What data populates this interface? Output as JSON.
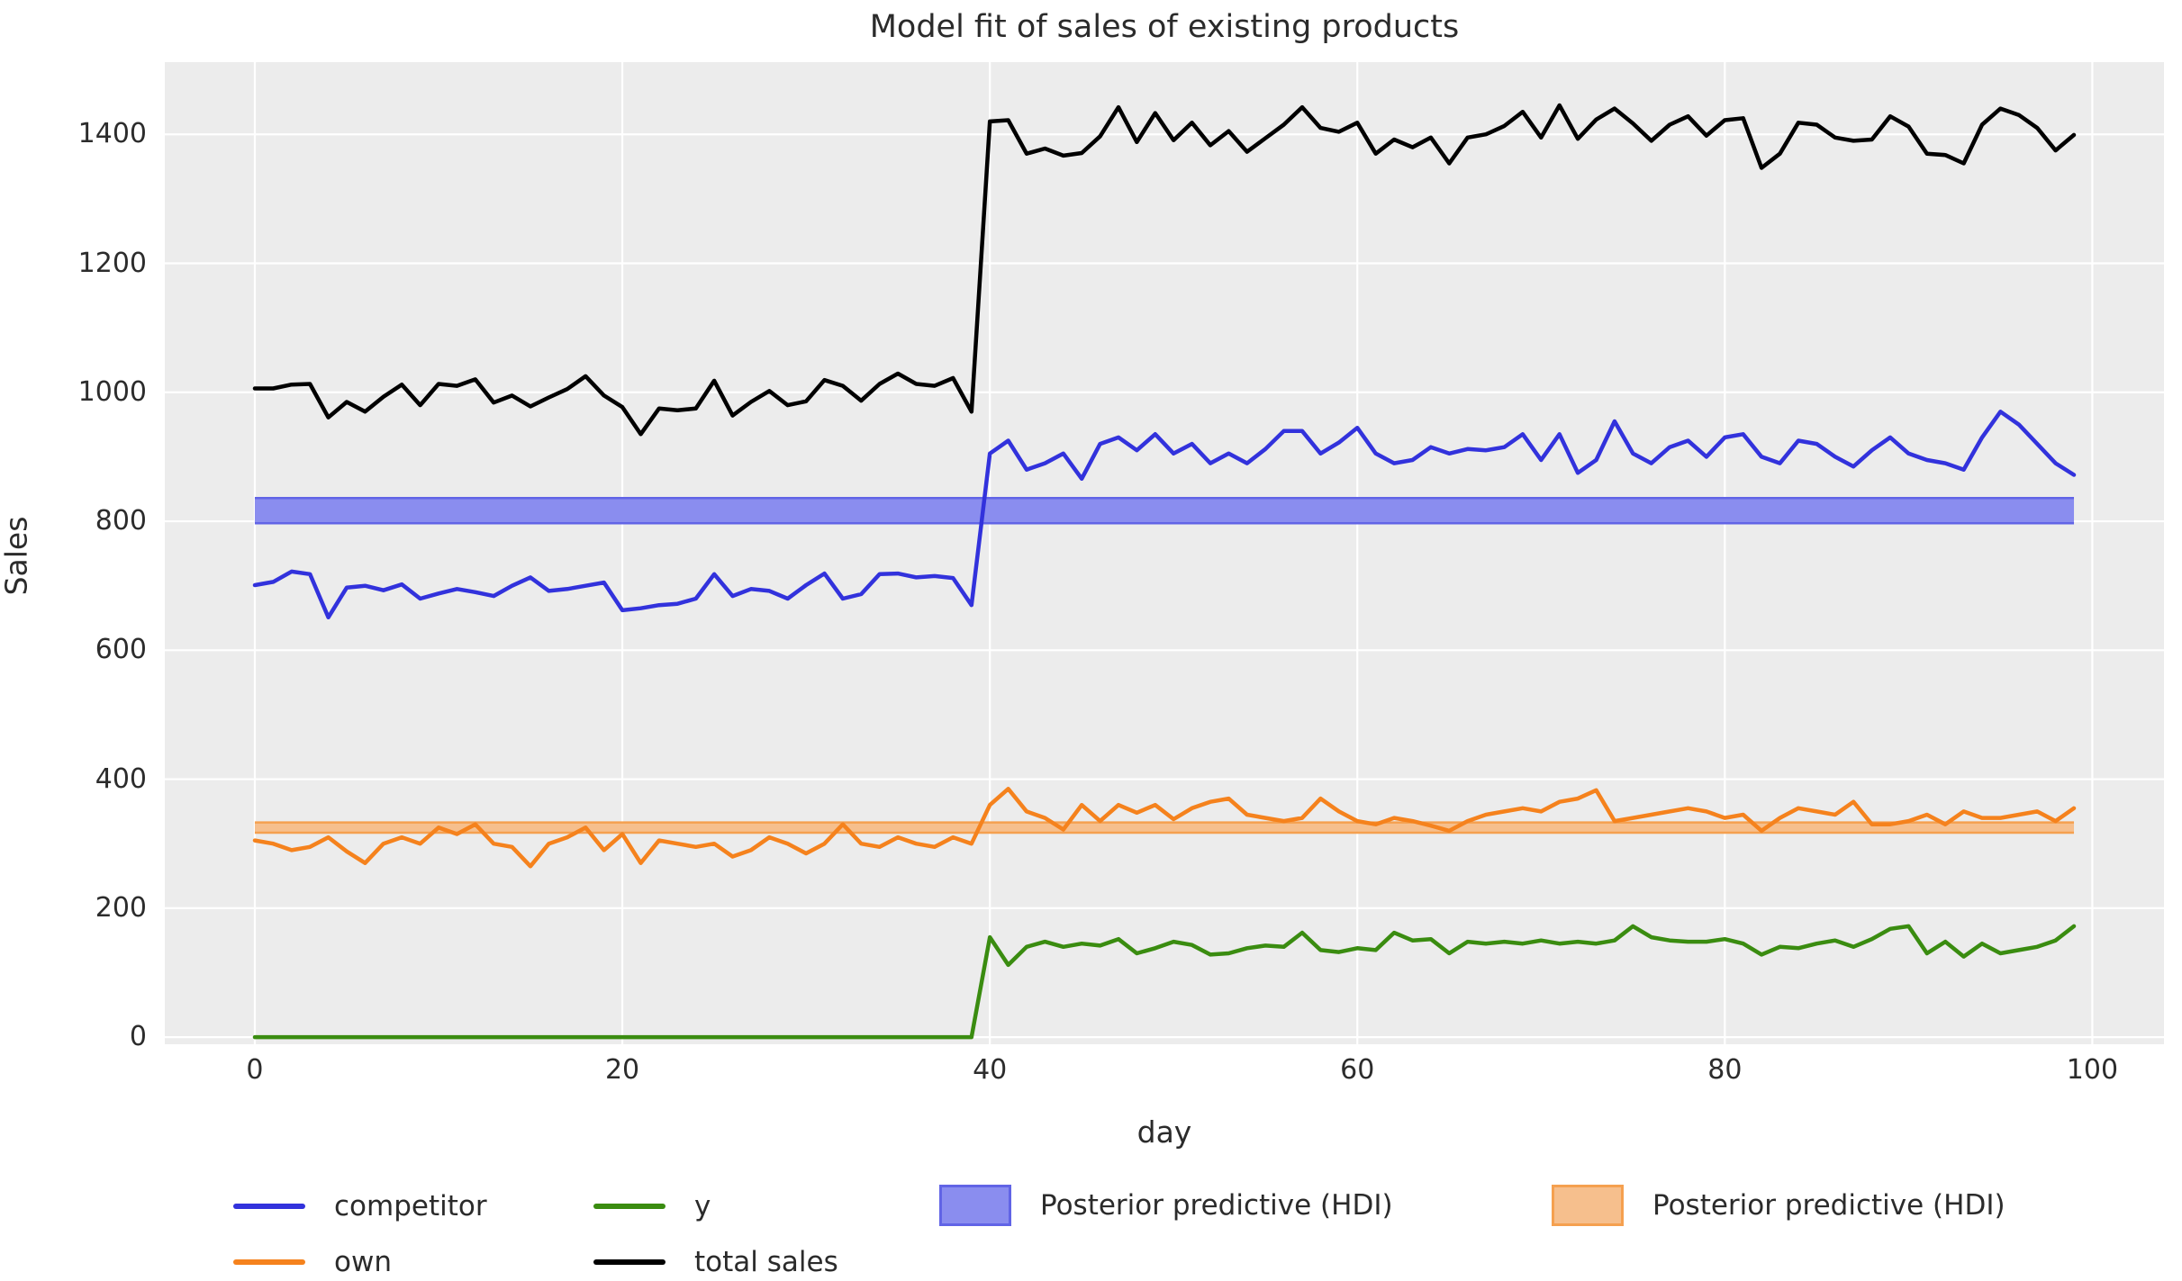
{
  "title": "Model fit of sales of existing products",
  "axes": {
    "xlabel": "day",
    "ylabel": "Sales",
    "x_ticks": [
      0,
      20,
      40,
      60,
      80,
      100
    ],
    "y_ticks": [
      0,
      200,
      400,
      600,
      800,
      1000,
      1200,
      1400
    ],
    "xlim": [
      -4.9,
      103.9
    ],
    "ylim": [
      -11,
      1512
    ],
    "grid": true,
    "plot_background": "#ececec",
    "gridline_color": "#ffffff"
  },
  "legend": {
    "position": "below plot, two rows",
    "entries": [
      {
        "label": "competitor",
        "type": "line",
        "color": "#3232dc"
      },
      {
        "label": "own",
        "type": "line",
        "color": "#f5821d"
      },
      {
        "label": "y",
        "type": "line",
        "color": "#3a8c10"
      },
      {
        "label": "total sales",
        "type": "line",
        "color": "#000000"
      },
      {
        "label": "Posterior predictive (HDI)",
        "type": "patch",
        "color": "#8a8def",
        "edge": "#6164e6"
      },
      {
        "label": "Posterior predictive (HDI)",
        "type": "patch",
        "color": "#f6bf8d",
        "edge": "#f5a04f"
      }
    ]
  },
  "chart_data": {
    "type": "line",
    "title": "Model fit of sales of existing products",
    "xlabel": "day",
    "ylabel": "Sales",
    "x_note": "days are integers 0..99 (x0 + i*dx)",
    "x0": 0,
    "dx": 1,
    "n": 100,
    "series": [
      {
        "name": "competitor",
        "color": "#3232dc",
        "values": [
          701,
          706,
          722,
          718,
          651,
          697,
          700,
          693,
          702,
          680,
          688,
          695,
          690,
          684,
          700,
          713,
          692,
          695,
          700,
          705,
          662,
          665,
          670,
          672,
          680,
          718,
          684,
          695,
          692,
          680,
          701,
          719,
          680,
          687,
          718,
          719,
          713,
          715,
          712,
          670,
          905,
          925,
          880,
          890,
          905,
          866,
          920,
          930,
          910,
          935,
          905,
          920,
          890,
          905,
          890,
          912,
          940,
          940,
          905,
          922,
          945,
          905,
          890,
          895,
          915,
          905,
          912,
          910,
          915,
          935,
          895,
          935,
          875,
          895,
          955,
          905,
          890,
          915,
          925,
          900,
          930,
          935,
          900,
          890,
          925,
          920,
          900,
          885,
          910,
          930,
          905,
          895,
          890,
          880,
          930,
          970,
          950,
          920,
          890,
          872
        ]
      },
      {
        "name": "own",
        "color": "#f5821d",
        "values": [
          305,
          300,
          290,
          295,
          310,
          288,
          270,
          300,
          310,
          300,
          325,
          315,
          330,
          300,
          295,
          265,
          300,
          310,
          325,
          290,
          315,
          270,
          305,
          300,
          295,
          300,
          280,
          290,
          310,
          300,
          285,
          300,
          330,
          300,
          295,
          310,
          300,
          295,
          310,
          300,
          360,
          385,
          350,
          340,
          322,
          360,
          335,
          360,
          348,
          360,
          338,
          355,
          365,
          370,
          345,
          340,
          335,
          340,
          370,
          350,
          335,
          330,
          340,
          335,
          328,
          320,
          335,
          345,
          350,
          355,
          350,
          365,
          370,
          383,
          335,
          340,
          345,
          350,
          355,
          350,
          340,
          345,
          320,
          340,
          355,
          350,
          345,
          365,
          330,
          330,
          335,
          345,
          330,
          350,
          340,
          340,
          345,
          350,
          335,
          355
        ]
      },
      {
        "name": "y",
        "color": "#3a8c10",
        "values": [
          0,
          0,
          0,
          0,
          0,
          0,
          0,
          0,
          0,
          0,
          0,
          0,
          0,
          0,
          0,
          0,
          0,
          0,
          0,
          0,
          0,
          0,
          0,
          0,
          0,
          0,
          0,
          0,
          0,
          0,
          0,
          0,
          0,
          0,
          0,
          0,
          0,
          0,
          0,
          0,
          155,
          112,
          140,
          148,
          140,
          145,
          142,
          152,
          130,
          138,
          148,
          143,
          128,
          130,
          138,
          142,
          140,
          162,
          135,
          132,
          138,
          135,
          162,
          150,
          152,
          130,
          148,
          145,
          148,
          145,
          150,
          145,
          148,
          145,
          150,
          172,
          155,
          150,
          148,
          148,
          152,
          145,
          128,
          140,
          138,
          145,
          150,
          140,
          152,
          168,
          172,
          130,
          148,
          125,
          145,
          130,
          135,
          140,
          150,
          172
        ]
      },
      {
        "name": "total sales",
        "color": "#000000",
        "values": [
          1006,
          1006,
          1012,
          1013,
          961,
          985,
          970,
          993,
          1012,
          980,
          1013,
          1010,
          1020,
          984,
          995,
          978,
          992,
          1005,
          1025,
          995,
          977,
          935,
          975,
          972,
          975,
          1018,
          964,
          985,
          1002,
          980,
          986,
          1019,
          1010,
          987,
          1013,
          1029,
          1013,
          1010,
          1022,
          970,
          1420,
          1422,
          1370,
          1378,
          1367,
          1371,
          1397,
          1442,
          1388,
          1433,
          1391,
          1418,
          1383,
          1405,
          1373,
          1394,
          1415,
          1442,
          1410,
          1404,
          1418,
          1370,
          1392,
          1380,
          1395,
          1355,
          1395,
          1400,
          1413,
          1435,
          1395,
          1445,
          1393,
          1423,
          1440,
          1417,
          1390,
          1415,
          1428,
          1398,
          1422,
          1425,
          1348,
          1370,
          1418,
          1415,
          1395,
          1390,
          1392,
          1428,
          1412,
          1370,
          1368,
          1355,
          1415,
          1440,
          1430,
          1410,
          1375,
          1399
        ]
      }
    ],
    "bands": [
      {
        "name": "Posterior predictive (HDI)",
        "series": "competitor",
        "x_start": 0,
        "x_end": 99,
        "lo": 797,
        "hi": 836,
        "fill": "#8a8def",
        "edge": "#6164e6"
      },
      {
        "name": "Posterior predictive (HDI)",
        "series": "own",
        "x_start": 0,
        "x_end": 99,
        "lo": 317,
        "hi": 333,
        "fill": "#f6bf8d",
        "edge": "#f5a04f"
      }
    ]
  }
}
